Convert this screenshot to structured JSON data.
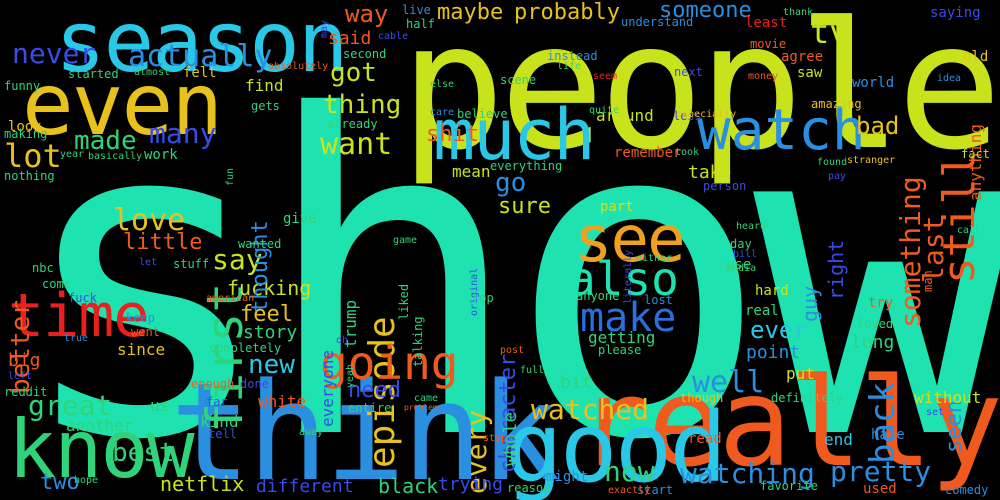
{
  "words": [
    {
      "text": "show",
      "color": "#1ee3b0"
    },
    {
      "text": "people",
      "color": "#c8e31c"
    },
    {
      "text": "think",
      "color": "#2a8fe0"
    },
    {
      "text": "really",
      "color": "#f05a1e"
    },
    {
      "text": "season",
      "color": "#29c8e6"
    },
    {
      "text": "good",
      "color": "#29c8e6"
    },
    {
      "text": "even",
      "color": "#e8c21c"
    },
    {
      "text": "know",
      "color": "#2fd47a"
    },
    {
      "text": "much",
      "color": "#29c8e6"
    },
    {
      "text": "watch",
      "color": "#2a8fe0"
    },
    {
      "text": "time",
      "color": "#e8201e"
    },
    {
      "text": "first",
      "color": "#2fd47a"
    },
    {
      "text": "see",
      "color": "#f0a01e"
    },
    {
      "text": "also",
      "color": "#1ee3b0"
    },
    {
      "text": "episode",
      "color": "#e8c21c"
    },
    {
      "text": "make",
      "color": "#2a6ee0"
    },
    {
      "text": "going",
      "color": "#f05a1e"
    },
    {
      "text": "still",
      "color": "#f05a1e"
    },
    {
      "text": "never",
      "color": "#3a4be8"
    },
    {
      "text": "actually",
      "color": "#2a8fe0"
    },
    {
      "text": "way",
      "color": "#f05a1e"
    },
    {
      "text": "maybe",
      "color": "#e8c21c"
    },
    {
      "text": "probably",
      "color": "#e8c21c"
    },
    {
      "text": "someone",
      "color": "#2a8fe0"
    },
    {
      "text": "tv",
      "color": "#c8e31c"
    },
    {
      "text": "bad",
      "color": "#e8c21c"
    },
    {
      "text": "said",
      "color": "#f05a1e"
    },
    {
      "text": "got",
      "color": "#c8e31c"
    },
    {
      "text": "thing",
      "color": "#c8e31c"
    },
    {
      "text": "want",
      "color": "#c8e31c"
    },
    {
      "text": "made",
      "color": "#2fd47a"
    },
    {
      "text": "many",
      "color": "#3a4be8"
    },
    {
      "text": "lot",
      "color": "#e8c21c"
    },
    {
      "text": "something",
      "color": "#f05a1e"
    },
    {
      "text": "last",
      "color": "#f05a1e"
    },
    {
      "text": "back",
      "color": "#2a8fe0"
    },
    {
      "text": "great",
      "color": "#2fd47a"
    },
    {
      "text": "better",
      "color": "#f05a1e"
    },
    {
      "text": "love",
      "color": "#e8c21c"
    },
    {
      "text": "little",
      "color": "#f05a1e"
    },
    {
      "text": "say",
      "color": "#c8e31c"
    },
    {
      "text": "new",
      "color": "#29c8e6"
    },
    {
      "text": "feel",
      "color": "#e8c21c"
    },
    {
      "text": "fucking",
      "color": "#c8e31c"
    },
    {
      "text": "watched",
      "color": "#e8c21c"
    },
    {
      "text": "well",
      "color": "#2a8fe0"
    },
    {
      "text": "ever",
      "color": "#29c8e6"
    },
    {
      "text": "every",
      "color": "#e8c21c"
    },
    {
      "text": "character",
      "color": "#3a4be8"
    },
    {
      "text": "watching",
      "color": "#2a8fe0"
    },
    {
      "text": "pretty",
      "color": "#2a8fe0"
    },
    {
      "text": "now",
      "color": "#2fd47a"
    },
    {
      "text": "best",
      "color": "#2fd47a"
    },
    {
      "text": "two",
      "color": "#2a8fe0"
    },
    {
      "text": "netflix",
      "color": "#c8e31c"
    },
    {
      "text": "different",
      "color": "#3a4be8"
    },
    {
      "text": "black",
      "color": "#2fd47a"
    },
    {
      "text": "trying",
      "color": "#3a4be8"
    },
    {
      "text": "go",
      "color": "#2a8fe0"
    },
    {
      "text": "sure",
      "color": "#c8e31c"
    },
    {
      "text": "shit",
      "color": "#f05a1e"
    },
    {
      "text": "thought",
      "color": "#2a8fe0"
    },
    {
      "text": "need",
      "color": "#3a4be8"
    },
    {
      "text": "story",
      "color": "#2fd47a"
    },
    {
      "text": "seen",
      "color": "#2a8fe0"
    },
    {
      "text": "right",
      "color": "#3a4be8"
    },
    {
      "text": "guy",
      "color": "#2a8fe0"
    },
    {
      "text": "point",
      "color": "#2a8fe0"
    },
    {
      "text": "long",
      "color": "#2fd47a"
    },
    {
      "text": "bit",
      "color": "#2fd47a"
    },
    {
      "text": "whole",
      "color": "#2fd47a"
    },
    {
      "text": "take",
      "color": "#c8e31c"
    },
    {
      "text": "since",
      "color": "#e8c21c"
    },
    {
      "text": "find",
      "color": "#c8e31c"
    },
    {
      "text": "give",
      "color": "#2fd47a"
    },
    {
      "text": "us",
      "color": "#2fd47a"
    },
    {
      "text": "white",
      "color": "#f05a1e"
    },
    {
      "text": "kind",
      "color": "#2fd47a"
    },
    {
      "text": "another",
      "color": "#2fd47a"
    },
    {
      "text": "big",
      "color": "#f05a1e"
    },
    {
      "text": "work",
      "color": "#2fd47a"
    },
    {
      "text": "look",
      "color": "#e8c21c"
    },
    {
      "text": "around",
      "color": "#c8e31c"
    },
    {
      "text": "getting",
      "color": "#2fd47a"
    },
    {
      "text": "remember",
      "color": "#f05a1e"
    },
    {
      "text": "mean",
      "color": "#c8e31c"
    },
    {
      "text": "part",
      "color": "#c8e31c"
    },
    {
      "text": "put",
      "color": "#c8e31c"
    },
    {
      "text": "trump",
      "color": "#2fd47a"
    },
    {
      "text": "everyone",
      "color": "#3a4be8"
    },
    {
      "text": "anything",
      "color": "#f05a1e"
    },
    {
      "text": "saying",
      "color": "#3a4be8"
    },
    {
      "text": "understand",
      "color": "#2a8fe0"
    },
    {
      "text": "least",
      "color": "#e8201e"
    },
    {
      "text": "thank",
      "color": "#2fd47a"
    },
    {
      "text": "old",
      "color": "#e8c21c"
    },
    {
      "text": "agree",
      "color": "#f05a1e"
    },
    {
      "text": "saw",
      "color": "#c8e31c"
    },
    {
      "text": "world",
      "color": "#2a8fe0"
    },
    {
      "text": "movie",
      "color": "#f05a1e"
    },
    {
      "text": "next",
      "color": "#3a4be8"
    },
    {
      "text": "fact",
      "color": "#c8e31c"
    },
    {
      "text": "hard",
      "color": "#c8e31c"
    },
    {
      "text": "real",
      "color": "#2fd47a"
    },
    {
      "text": "try",
      "color": "#f05a1e"
    },
    {
      "text": "loved",
      "color": "#2fd47a"
    },
    {
      "text": "without",
      "color": "#c8e31c"
    },
    {
      "text": "definitely",
      "color": "#2fd47a"
    },
    {
      "text": "end",
      "color": "#29c8e6"
    },
    {
      "text": "hate",
      "color": "#2a8fe0"
    },
    {
      "text": "read",
      "color": "#f05a1e"
    },
    {
      "text": "used",
      "color": "#f05a1e"
    },
    {
      "text": "favorite",
      "color": "#2fd47a"
    },
    {
      "text": "comedy",
      "color": "#2a8fe0"
    },
    {
      "text": "man",
      "color": "#f05a1e"
    },
    {
      "text": "use",
      "color": "#2fd47a"
    },
    {
      "text": "fuck",
      "color": "#3a4be8"
    },
    {
      "text": "keep",
      "color": "#2a8fe0"
    },
    {
      "text": "went",
      "color": "#f05a1e"
    },
    {
      "text": "come",
      "color": "#2fd47a"
    },
    {
      "text": "nbc",
      "color": "#2fd47a"
    },
    {
      "text": "completely",
      "color": "#2fd47a"
    },
    {
      "text": "enough",
      "color": "#f05a1e"
    },
    {
      "text": "done",
      "color": "#3a4be8"
    },
    {
      "text": "far",
      "color": "#3a4be8"
    },
    {
      "text": "reddit",
      "color": "#2fd47a"
    },
    {
      "text": "funny",
      "color": "#2fd47a"
    },
    {
      "text": "making",
      "color": "#2fd47a"
    },
    {
      "text": "nothing",
      "color": "#2fd47a"
    },
    {
      "text": "started",
      "color": "#2fd47a"
    },
    {
      "text": "almost",
      "color": "#2fd47a"
    },
    {
      "text": "felt",
      "color": "#e8c21c"
    },
    {
      "text": "second",
      "color": "#2fd47a"
    },
    {
      "text": "gets",
      "color": "#2fd47a"
    },
    {
      "text": "already",
      "color": "#2fd47a"
    },
    {
      "text": "year",
      "color": "#2fd47a"
    },
    {
      "text": "basically",
      "color": "#2fd47a"
    },
    {
      "text": "believe",
      "color": "#2fd47a"
    },
    {
      "text": "everything",
      "color": "#2fd47a"
    },
    {
      "text": "person",
      "color": "#3a4be8"
    },
    {
      "text": "took",
      "color": "#2fd47a"
    },
    {
      "text": "less",
      "color": "#3a4be8"
    },
    {
      "text": "found",
      "color": "#2fd47a"
    },
    {
      "text": "stranger",
      "color": "#e8c21c"
    },
    {
      "text": "pay",
      "color": "#3a4be8"
    },
    {
      "text": "especially",
      "color": "#e8c21c"
    },
    {
      "text": "amazing",
      "color": "#e8c21c"
    },
    {
      "text": "scene",
      "color": "#2fd47a"
    },
    {
      "text": "instead",
      "color": "#2a8fe0"
    },
    {
      "text": "life",
      "color": "#2fd47a"
    },
    {
      "text": "live",
      "color": "#2a8fe0"
    },
    {
      "text": "half",
      "color": "#2fd47a"
    },
    {
      "text": "may",
      "color": "#3a4be8"
    },
    {
      "text": "cable",
      "color": "#3a4be8"
    },
    {
      "text": "absolutely",
      "color": "#f05a1e"
    },
    {
      "text": "else",
      "color": "#2fd47a"
    },
    {
      "text": "care",
      "color": "#2a8fe0"
    },
    {
      "text": "seem",
      "color": "#e8201e"
    },
    {
      "text": "quite",
      "color": "#2fd47a"
    },
    {
      "text": "money",
      "color": "#f05a1e"
    },
    {
      "text": "idea",
      "color": "#2a8fe0"
    },
    {
      "text": "fun",
      "color": "#2fd47a"
    },
    {
      "text": "heard",
      "color": "#2fd47a"
    },
    {
      "text": "day",
      "color": "#2fd47a"
    },
    {
      "text": "call",
      "color": "#2fd47a"
    },
    {
      "text": "media",
      "color": "#2fd47a"
    },
    {
      "text": "bill",
      "color": "#3a4be8"
    },
    {
      "text": "game",
      "color": "#2fd47a"
    },
    {
      "text": "either",
      "color": "#2fd47a"
    },
    {
      "text": "original",
      "color": "#3a4be8"
    },
    {
      "text": "literally",
      "color": "#3a4be8"
    },
    {
      "text": "liked",
      "color": "#2fd47a"
    },
    {
      "text": "talking",
      "color": "#2fd47a"
    },
    {
      "text": "anyone",
      "color": "#2fd47a"
    },
    {
      "text": "lost",
      "color": "#2a8fe0"
    },
    {
      "text": "top",
      "color": "#2fd47a"
    },
    {
      "text": "please",
      "color": "#2fd47a"
    },
    {
      "text": "yeah",
      "color": "#2fd47a"
    },
    {
      "text": "oh",
      "color": "#3a4be8"
    },
    {
      "text": "entire",
      "color": "#2fd47a"
    },
    {
      "text": "came",
      "color": "#2fd47a"
    },
    {
      "text": "problem",
      "color": "#f05a1e"
    },
    {
      "text": "post",
      "color": "#f05a1e"
    },
    {
      "text": "full",
      "color": "#2fd47a"
    },
    {
      "text": "reason",
      "color": "#2fd47a"
    },
    {
      "text": "might",
      "color": "#2a8fe0"
    },
    {
      "text": "start",
      "color": "#2a8fe0"
    },
    {
      "text": "exactly",
      "color": "#f05a1e"
    },
    {
      "text": "stop",
      "color": "#f05a1e"
    },
    {
      "text": "though",
      "color": "#e8c21c"
    },
    {
      "text": "away",
      "color": "#2fd47a"
    },
    {
      "text": "tell",
      "color": "#3a4be8"
    },
    {
      "text": "hope",
      "color": "#2fd47a"
    },
    {
      "text": "american",
      "color": "#f05a1e"
    },
    {
      "text": "stuff",
      "color": "#2fd47a"
    },
    {
      "text": "wanted",
      "color": "#2fd47a"
    },
    {
      "text": "let",
      "color": "#3a4be8"
    },
    {
      "text": "true",
      "color": "#2a8fe0"
    },
    {
      "text": "left",
      "color": "#3a4be8"
    },
    {
      "text": "set",
      "color": "#3a4be8"
    }
  ]
}
